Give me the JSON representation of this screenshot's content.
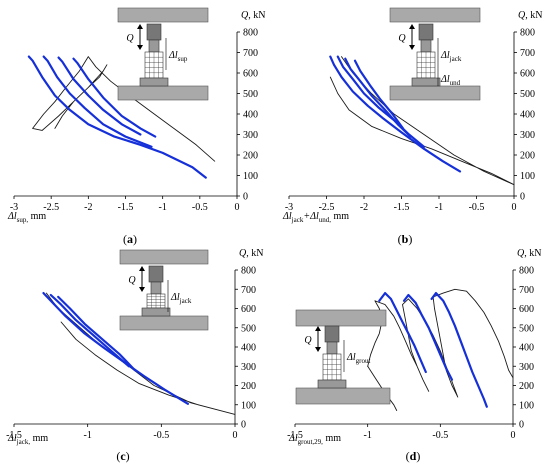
{
  "chart_data": [
    {
      "type": "line",
      "panel_label": "(a)",
      "xlabel": "Δl_sup, mm",
      "ylabel": "Q, kN",
      "x_ticks": [
        "-3",
        "-2.5",
        "-2",
        "-1.5",
        "-1",
        "-0.5",
        "0"
      ],
      "y_ticks": [
        "0",
        "100",
        "200",
        "300",
        "400",
        "500",
        "600",
        "700",
        "800"
      ],
      "xlim": [
        -3,
        0
      ],
      "ylim": [
        0,
        800
      ],
      "inset_labels": [
        "Q",
        "Δl_sup"
      ],
      "series": [
        {
          "color": "#1a1a1a",
          "width": 0.9,
          "points": [
            [
              -0.3,
              170
            ],
            [
              -0.55,
              250
            ],
            [
              -0.85,
              330
            ],
            [
              -1.15,
              410
            ],
            [
              -1.45,
              490
            ],
            [
              -1.7,
              560
            ],
            [
              -1.9,
              630
            ],
            [
              -2.0,
              680
            ],
            [
              -2.12,
              610
            ],
            [
              -2.3,
              530
            ],
            [
              -2.45,
              460
            ],
            [
              -2.6,
              400
            ],
            [
              -2.75,
              330
            ],
            [
              -2.62,
              320
            ],
            [
              -2.4,
              390
            ],
            [
              -2.2,
              460
            ],
            [
              -2.0,
              530
            ],
            [
              -1.85,
              580
            ],
            [
              -1.75,
              640
            ],
            [
              -1.8,
              610
            ],
            [
              -2.0,
              530
            ],
            [
              -2.2,
              460
            ],
            [
              -2.35,
              390
            ],
            [
              -2.45,
              330
            ]
          ]
        },
        {
          "color": "#1530d8",
          "width": 2.2,
          "points": [
            [
              -2.8,
              680
            ],
            [
              -2.75,
              660
            ],
            [
              -2.62,
              580
            ],
            [
              -2.45,
              490
            ],
            [
              -2.25,
              420
            ],
            [
              -2.0,
              350
            ],
            [
              -1.65,
              290
            ],
            [
              -1.3,
              250
            ],
            [
              -1.0,
              210
            ],
            [
              -0.6,
              140
            ],
            [
              -0.42,
              90
            ]
          ]
        },
        {
          "color": "#1530d8",
          "width": 2.2,
          "points": [
            [
              -2.6,
              680
            ],
            [
              -2.55,
              660
            ],
            [
              -2.42,
              580
            ],
            [
              -2.25,
              500
            ],
            [
              -2.05,
              430
            ],
            [
              -1.8,
              350
            ],
            [
              -1.5,
              290
            ],
            [
              -1.15,
              240
            ]
          ]
        },
        {
          "color": "#1530d8",
          "width": 2.2,
          "points": [
            [
              -2.4,
              675
            ],
            [
              -2.35,
              655
            ],
            [
              -2.2,
              570
            ],
            [
              -2.0,
              490
            ],
            [
              -1.8,
              420
            ],
            [
              -1.55,
              350
            ],
            [
              -1.3,
              300
            ]
          ]
        },
        {
          "color": "#1530d8",
          "width": 2.2,
          "points": [
            [
              -2.2,
              670
            ],
            [
              -2.15,
              650
            ],
            [
              -2.0,
              570
            ],
            [
              -1.8,
              480
            ],
            [
              -1.55,
              390
            ],
            [
              -1.3,
              330
            ],
            [
              -1.1,
              290
            ]
          ]
        }
      ]
    },
    {
      "type": "line",
      "panel_label": "(b)",
      "xlabel": "Δl_jack+Δl_und, mm",
      "ylabel": "Q, kN",
      "x_ticks": [
        "-3",
        "-2.5",
        "-2",
        "-1.5",
        "-1",
        "-0.5",
        "0"
      ],
      "y_ticks": [
        "0",
        "100",
        "200",
        "300",
        "400",
        "500",
        "600",
        "700",
        "800"
      ],
      "xlim": [
        -3,
        0
      ],
      "ylim": [
        0,
        800
      ],
      "inset_labels": [
        "Q",
        "Δl_jack",
        "Δl_und"
      ],
      "series": [
        {
          "color": "#1a1a1a",
          "width": 0.9,
          "points": [
            [
              -2.3,
              680
            ],
            [
              -2.15,
              600
            ],
            [
              -1.9,
              500
            ],
            [
              -1.6,
              400
            ],
            [
              -1.2,
              300
            ],
            [
              -0.8,
              200
            ],
            [
              -0.4,
              120
            ],
            [
              0,
              55
            ],
            [
              -0.3,
              110
            ],
            [
              -0.7,
              170
            ],
            [
              -1.1,
              230
            ],
            [
              -1.5,
              280
            ],
            [
              -1.9,
              340
            ],
            [
              -2.2,
              420
            ],
            [
              -2.35,
              500
            ],
            [
              -2.45,
              580
            ]
          ]
        },
        {
          "color": "#1530d8",
          "width": 2.2,
          "points": [
            [
              -2.45,
              680
            ],
            [
              -2.4,
              640
            ],
            [
              -2.3,
              580
            ],
            [
              -2.15,
              510
            ],
            [
              -1.95,
              440
            ],
            [
              -1.75,
              380
            ],
            [
              -1.5,
              310
            ],
            [
              -1.2,
              230
            ],
            [
              -0.95,
              170
            ],
            [
              -0.72,
              120
            ]
          ]
        },
        {
          "color": "#1530d8",
          "width": 2.2,
          "points": [
            [
              -2.35,
              680
            ],
            [
              -2.28,
              630
            ],
            [
              -2.15,
              570
            ],
            [
              -2.0,
              500
            ],
            [
              -1.8,
              430
            ],
            [
              -1.6,
              370
            ],
            [
              -1.4,
              300
            ],
            [
              -1.2,
              240
            ]
          ]
        },
        {
          "color": "#1530d8",
          "width": 2.2,
          "points": [
            [
              -2.25,
              670
            ],
            [
              -2.18,
              620
            ],
            [
              -2.05,
              560
            ],
            [
              -1.9,
              490
            ],
            [
              -1.72,
              420
            ],
            [
              -1.55,
              350
            ],
            [
              -1.38,
              290
            ]
          ]
        },
        {
          "color": "#1530d8",
          "width": 2.2,
          "points": [
            [
              -2.12,
              660
            ],
            [
              -2.05,
              610
            ],
            [
              -1.92,
              540
            ],
            [
              -1.78,
              470
            ],
            [
              -1.62,
              400
            ],
            [
              -1.48,
              330
            ]
          ]
        }
      ]
    },
    {
      "type": "line",
      "panel_label": "(c)",
      "xlabel": "Δl_jack, mm",
      "ylabel": "Q, kN",
      "x_ticks": [
        "-1.5",
        "-1",
        "-0.5",
        "0"
      ],
      "y_ticks": [
        "0",
        "100",
        "200",
        "300",
        "400",
        "500",
        "600",
        "700",
        "800"
      ],
      "xlim": [
        -1.5,
        0
      ],
      "ylim": [
        0,
        800
      ],
      "inset_labels": [
        "Q",
        "Δl_jack"
      ],
      "series": [
        {
          "color": "#1a1a1a",
          "width": 0.9,
          "points": [
            [
              -1.28,
              680
            ],
            [
              -1.2,
              600
            ],
            [
              -1.05,
              500
            ],
            [
              -0.9,
              400
            ],
            [
              -0.72,
              300
            ],
            [
              -0.55,
              200
            ],
            [
              -0.3,
              110
            ],
            [
              0,
              50
            ],
            [
              -0.25,
              100
            ],
            [
              -0.45,
              150
            ],
            [
              -0.65,
              210
            ],
            [
              -0.8,
              280
            ],
            [
              -0.95,
              360
            ],
            [
              -1.08,
              440
            ],
            [
              -1.18,
              530
            ]
          ]
        },
        {
          "color": "#1530d8",
          "width": 2.2,
          "points": [
            [
              -1.3,
              680
            ],
            [
              -1.25,
              640
            ],
            [
              -1.15,
              560
            ],
            [
              -1.02,
              470
            ],
            [
              -0.88,
              390
            ],
            [
              -0.75,
              320
            ],
            [
              -0.62,
              250
            ],
            [
              -0.48,
              180
            ],
            [
              -0.32,
              105
            ]
          ]
        },
        {
          "color": "#1530d8",
          "width": 2.2,
          "points": [
            [
              -1.25,
              670
            ],
            [
              -1.18,
              620
            ],
            [
              -1.08,
              540
            ],
            [
              -0.96,
              460
            ],
            [
              -0.84,
              380
            ],
            [
              -0.72,
              300
            ]
          ]
        },
        {
          "color": "#1530d8",
          "width": 2.2,
          "points": [
            [
              -1.2,
              660
            ],
            [
              -1.12,
              600
            ],
            [
              -1.02,
              520
            ],
            [
              -0.9,
              440
            ],
            [
              -0.78,
              360
            ],
            [
              -0.68,
              280
            ]
          ]
        }
      ]
    },
    {
      "type": "line",
      "panel_label": "(d)",
      "xlabel": "Δl_grout,29, mm",
      "ylabel": "Q, kN",
      "x_ticks": [
        "-1.5",
        "-1",
        "-0.5",
        "0"
      ],
      "y_ticks": [
        "0",
        "100",
        "200",
        "300",
        "400",
        "500",
        "600",
        "700",
        "800"
      ],
      "xlim": [
        -1.5,
        0
      ],
      "ylim": [
        0,
        800
      ],
      "inset_labels": [
        "Q",
        "Δl_grout"
      ],
      "series": [
        {
          "color": "#1a1a1a",
          "width": 0.9,
          "points": [
            [
              -1.0,
              300
            ],
            [
              -0.98,
              360
            ],
            [
              -0.95,
              420
            ],
            [
              -0.92,
              470
            ],
            [
              -0.9,
              540
            ],
            [
              -0.92,
              600
            ],
            [
              -0.95,
              640
            ],
            [
              -0.88,
              620
            ],
            [
              -0.82,
              560
            ],
            [
              -0.78,
              500
            ],
            [
              -0.74,
              430
            ],
            [
              -0.7,
              360
            ],
            [
              -0.66,
              300
            ],
            [
              -0.62,
              230
            ],
            [
              -0.58,
              170
            ],
            [
              -0.62,
              230
            ],
            [
              -0.66,
              300
            ],
            [
              -0.7,
              380
            ],
            [
              -0.72,
              460
            ],
            [
              -0.74,
              540
            ],
            [
              -0.76,
              620
            ],
            [
              -0.72,
              650
            ],
            [
              -0.66,
              600
            ],
            [
              -0.6,
              530
            ],
            [
              -0.55,
              460
            ],
            [
              -0.5,
              380
            ],
            [
              -0.46,
              300
            ],
            [
              -0.42,
              220
            ],
            [
              -0.38,
              140
            ],
            [
              -0.42,
              200
            ],
            [
              -0.46,
              280
            ],
            [
              -0.48,
              360
            ],
            [
              -0.5,
              440
            ],
            [
              -0.52,
              520
            ],
            [
              -0.54,
              600
            ],
            [
              -0.55,
              660
            ],
            [
              -0.48,
              680
            ],
            [
              -0.4,
              700
            ],
            [
              -0.32,
              690
            ],
            [
              -0.26,
              640
            ],
            [
              -0.2,
              580
            ],
            [
              -0.15,
              510
            ],
            [
              -0.1,
              430
            ],
            [
              -0.06,
              350
            ],
            [
              -0.03,
              280
            ],
            [
              0,
              240
            ]
          ]
        },
        {
          "color": "#1a1a1a",
          "width": 0.9,
          "points": [
            [
              -1.0,
              300
            ],
            [
              -0.94,
              230
            ],
            [
              -0.88,
              160
            ],
            [
              -0.82,
              100
            ],
            [
              -0.8,
              70
            ]
          ]
        },
        {
          "color": "#1530d8",
          "width": 2.2,
          "points": [
            [
              -0.92,
              640
            ],
            [
              -0.88,
              680
            ],
            [
              -0.84,
              650
            ],
            [
              -0.8,
              590
            ],
            [
              -0.76,
              530
            ],
            [
              -0.72,
              470
            ],
            [
              -0.68,
              410
            ],
            [
              -0.64,
              340
            ],
            [
              -0.6,
              270
            ]
          ]
        },
        {
          "color": "#1530d8",
          "width": 2.2,
          "points": [
            [
              -0.75,
              640
            ],
            [
              -0.72,
              670
            ],
            [
              -0.67,
              630
            ],
            [
              -0.63,
              570
            ],
            [
              -0.58,
              500
            ],
            [
              -0.54,
              430
            ],
            [
              -0.5,
              360
            ],
            [
              -0.46,
              290
            ],
            [
              -0.42,
              230
            ]
          ]
        },
        {
          "color": "#1530d8",
          "width": 2.2,
          "points": [
            [
              -0.56,
              650
            ],
            [
              -0.53,
              680
            ],
            [
              -0.48,
              640
            ],
            [
              -0.44,
              580
            ],
            [
              -0.4,
              510
            ],
            [
              -0.36,
              430
            ],
            [
              -0.32,
              350
            ],
            [
              -0.28,
              270
            ],
            [
              -0.24,
              200
            ],
            [
              -0.2,
              130
            ],
            [
              -0.18,
              90
            ]
          ]
        }
      ]
    }
  ]
}
